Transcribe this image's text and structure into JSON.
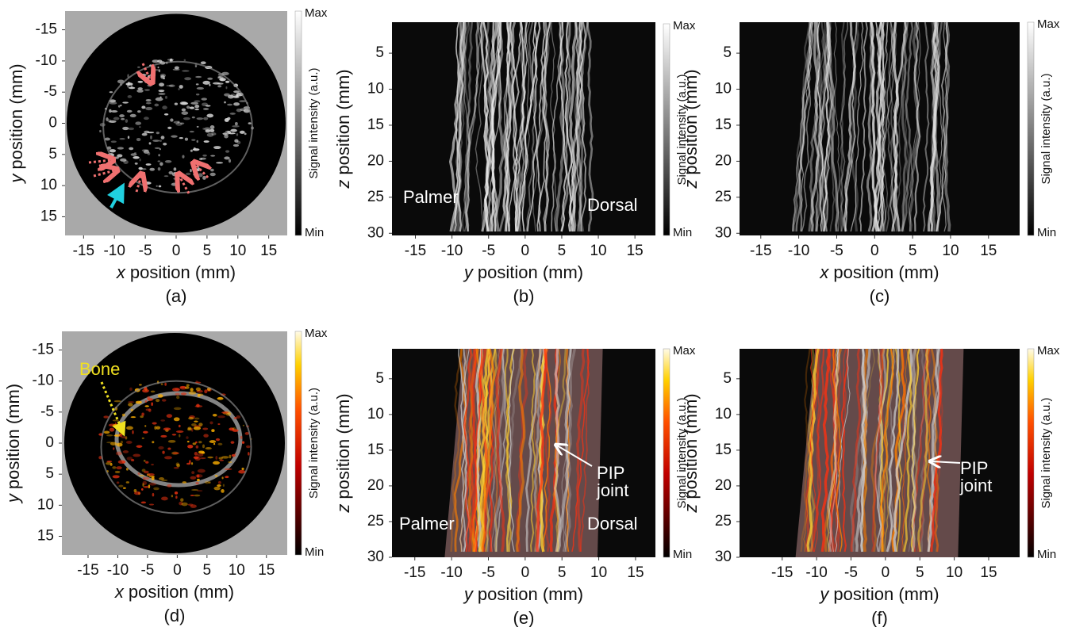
{
  "panels": [
    {
      "caption": "(a)",
      "xlabel": {
        "var": "x",
        "text": "position (mm)"
      },
      "ylabel": {
        "var": "y",
        "text": "position (mm)"
      },
      "xlim": [
        -18,
        18
      ],
      "ylim": [
        -18,
        18
      ],
      "xticks": [
        -15,
        -10,
        -5,
        0,
        5,
        10,
        15
      ],
      "yticks": [
        -15,
        -10,
        -5,
        0,
        5,
        10,
        15
      ],
      "colorbar": {
        "title": "Signal intensity (a.u.)",
        "max": "Max",
        "min": "Min",
        "colormap": "gray"
      },
      "annotations": []
    },
    {
      "caption": "(b)",
      "xlabel": {
        "var": "y",
        "text": "position (mm)"
      },
      "ylabel": {
        "var": "z",
        "text": "position (mm)"
      },
      "xlim": [
        -18.2,
        17.8
      ],
      "ylim": [
        0.7,
        30.3
      ],
      "xticks": [
        -15,
        -10,
        -5,
        0,
        5,
        10,
        15
      ],
      "yticks": [
        5,
        10,
        15,
        20,
        25,
        30
      ],
      "colorbar": {
        "title": "Signal intensity (a.u.)",
        "max": "Max",
        "min": "Min",
        "colormap": "gray"
      },
      "annotations": [
        {
          "lines": [
            "Palmer"
          ],
          "color": "#ffffff"
        },
        {
          "lines": [
            "Dorsal"
          ],
          "color": "#ffffff"
        }
      ]
    },
    {
      "caption": "(c)",
      "xlabel": {
        "var": "x",
        "text": "position (mm)"
      },
      "ylabel": {
        "var": "z",
        "text": "position (mm)"
      },
      "xlim": [
        -17.8,
        19.1
      ],
      "ylim": [
        0.7,
        30.3
      ],
      "xticks": [
        -15,
        -10,
        -5,
        0,
        5,
        10,
        15
      ],
      "yticks": [
        5,
        10,
        15,
        20,
        25,
        30
      ],
      "colorbar": {
        "title": "Signal intensity (a.u.)",
        "max": "Max",
        "min": "Min",
        "colormap": "gray"
      },
      "annotations": []
    },
    {
      "caption": "(d)",
      "xlabel": {
        "var": "x",
        "text": "position (mm)"
      },
      "ylabel": {
        "var": "y",
        "text": "position (mm)"
      },
      "xlim": [
        -19.4,
        18.5
      ],
      "ylim": [
        -18,
        18
      ],
      "xticks": [
        -15,
        -10,
        -5,
        0,
        5,
        10,
        15
      ],
      "yticks": [
        -15,
        -10,
        -5,
        0,
        5,
        10,
        15
      ],
      "colorbar": {
        "title": "Signal intensity (a.u.)",
        "max": "Max",
        "min": "Min",
        "colormap": "hot"
      },
      "annotations": [
        {
          "lines": [
            "Bone"
          ],
          "color": "#f0e020"
        }
      ]
    },
    {
      "caption": "(e)",
      "xlabel": {
        "var": "y",
        "text": "position (mm)"
      },
      "ylabel": {
        "var": "z",
        "text": "position (mm)"
      },
      "xlim": [
        -18.1,
        17.7
      ],
      "ylim": [
        0.8,
        30
      ],
      "xticks": [
        -15,
        -10,
        -5,
        0,
        5,
        10,
        15
      ],
      "yticks": [
        5,
        10,
        15,
        20,
        25,
        30
      ],
      "colorbar": {
        "title": "Signal intensity (a.u.)",
        "max": "Max",
        "min": "Min",
        "colormap": "hot"
      },
      "annotations": [
        {
          "lines": [
            "Palmer"
          ],
          "color": "#ffffff"
        },
        {
          "lines": [
            "PIP",
            "joint"
          ],
          "color": "#ffffff"
        },
        {
          "lines": [
            "Dorsal"
          ],
          "color": "#ffffff"
        }
      ]
    },
    {
      "caption": "(f)",
      "xlabel": {
        "var": "y",
        "text": "position (mm)"
      },
      "ylabel": {
        "var": "z",
        "text": "position (mm)"
      },
      "xlim": [
        -21.2,
        19.5
      ],
      "ylim": [
        0.8,
        30
      ],
      "xticks": [
        -15,
        -10,
        -5,
        0,
        5,
        10,
        15
      ],
      "yticks": [
        5,
        10,
        15,
        20,
        25,
        30
      ],
      "colorbar": {
        "title": "Signal intensity (a.u.)",
        "max": "Max",
        "min": "Min",
        "colormap": "hot"
      },
      "annotations": [
        {
          "lines": [
            "PIP",
            "joint"
          ],
          "color": "#ffffff"
        }
      ]
    }
  ]
}
